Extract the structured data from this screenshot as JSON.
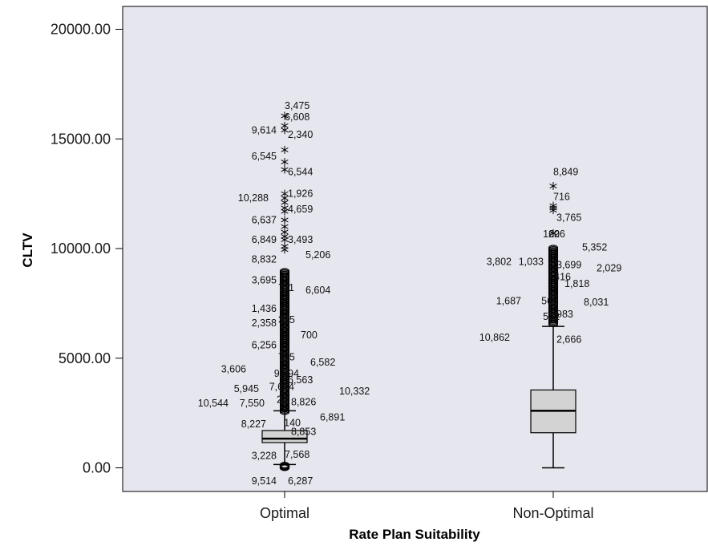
{
  "chart_data": {
    "type": "boxplot",
    "title": "",
    "xlabel": "Rate Plan Suitability",
    "ylabel": "CLTV",
    "ylim": [
      -1000,
      20700
    ],
    "yticks": [
      0,
      5000,
      10000,
      15000,
      20000
    ],
    "ytick_labels": [
      "0.00",
      "5000.00",
      "10000.00",
      "15000.00",
      "20000.00"
    ],
    "grid": false,
    "legend": "none",
    "colors": {
      "plot_bg": "#e6e6ef",
      "box_fill": "#d3d3d3",
      "stroke": "#000000"
    },
    "categories": [
      "Optimal",
      "Non-Optimal"
    ],
    "boxes": [
      {
        "category": "Optimal",
        "whisker_low": 150,
        "q1": 1150,
        "median": 1330,
        "q3": 1700,
        "whisker_high": 2600,
        "outlier_stars": [
          16050,
          15600,
          15400,
          14500,
          13950,
          13600,
          12500,
          12300,
          12100,
          11850,
          11700,
          11300,
          11000,
          10750,
          10550,
          10400,
          10100,
          9950
        ],
        "outlier_circle_range": [
          2550,
          9000
        ],
        "outlier_low_circles": [
          10,
          60,
          120
        ],
        "labels": [
          {
            "text": "3,475",
            "v": 16500
          },
          {
            "text": "6,608",
            "v": 16000
          },
          {
            "text": "9,614",
            "v": 15400
          },
          {
            "text": "2,340",
            "v": 15200
          },
          {
            "text": "6,545",
            "v": 14200
          },
          {
            "text": "6,544",
            "v": 13500
          },
          {
            "text": "10,288",
            "v": 12300
          },
          {
            "text": "1,926",
            "v": 12500
          },
          {
            "text": "4,659",
            "v": 11800
          },
          {
            "text": "6,637",
            "v": 11300
          },
          {
            "text": "6,849",
            "v": 10400
          },
          {
            "text": "3,493",
            "v": 10400
          },
          {
            "text": "8,832",
            "v": 9500
          },
          {
            "text": "5,206",
            "v": 9700
          },
          {
            "text": "3,695",
            "v": 8550
          },
          {
            "text": "711",
            "v": 8200
          },
          {
            "text": "6,604",
            "v": 8100
          },
          {
            "text": "1,436",
            "v": 7250
          },
          {
            "text": "2,358",
            "v": 6600
          },
          {
            "text": "375",
            "v": 6750
          },
          {
            "text": "700",
            "v": 6050
          },
          {
            "text": "6,256",
            "v": 5600
          },
          {
            "text": "775",
            "v": 5050
          },
          {
            "text": "6,582",
            "v": 4800
          },
          {
            "text": "3,606",
            "v": 4500
          },
          {
            "text": "9,394",
            "v": 4300
          },
          {
            "text": "6,563",
            "v": 4000
          },
          {
            "text": "5,945",
            "v": 3600
          },
          {
            "text": "7,614",
            "v": 3700
          },
          {
            "text": "10,332",
            "v": 3500
          },
          {
            "text": "10,544",
            "v": 2950
          },
          {
            "text": "7,550",
            "v": 2950
          },
          {
            "text": "24",
            "v": 3100
          },
          {
            "text": "8,826",
            "v": 3000
          },
          {
            "text": "6,891",
            "v": 2300
          },
          {
            "text": "8,227",
            "v": 2000
          },
          {
            "text": "140",
            "v": 2050
          },
          {
            "text": "8,853",
            "v": 1650
          },
          {
            "text": "3,228",
            "v": 550
          },
          {
            "text": "7,568",
            "v": 600
          },
          {
            "text": "9,514",
            "v": -600
          },
          {
            "text": "6,287",
            "v": -600
          }
        ]
      },
      {
        "category": "Non-Optimal",
        "whisker_low": 0,
        "q1": 1600,
        "median": 2600,
        "q3": 3550,
        "whisker_high": 6450,
        "outlier_stars": [
          12850,
          11950,
          11850,
          11750,
          10700
        ],
        "outlier_circle_range": [
          6550,
          10050
        ],
        "outlier_low_circles": [],
        "labels": [
          {
            "text": "8,849",
            "v": 13500
          },
          {
            "text": "716",
            "v": 12350
          },
          {
            "text": "3,765",
            "v": 11400
          },
          {
            "text": "120",
            "v": 10650
          },
          {
            "text": "626",
            "v": 10650
          },
          {
            "text": "5,352",
            "v": 10050
          },
          {
            "text": "3,802",
            "v": 9400
          },
          {
            "text": "1,033",
            "v": 9400
          },
          {
            "text": "3,699",
            "v": 9250
          },
          {
            "text": "2,029",
            "v": 9100
          },
          {
            "text": "416",
            "v": 8700
          },
          {
            "text": "1,818",
            "v": 8400
          },
          {
            "text": "1,687",
            "v": 7600
          },
          {
            "text": "566",
            "v": 7600
          },
          {
            "text": "8,031",
            "v": 7550
          },
          {
            "text": "532",
            "v": 6900
          },
          {
            "text": "983",
            "v": 7000
          },
          {
            "text": "10,862",
            "v": 5950
          },
          {
            "text": "2,666",
            "v": 5850
          }
        ]
      }
    ]
  }
}
